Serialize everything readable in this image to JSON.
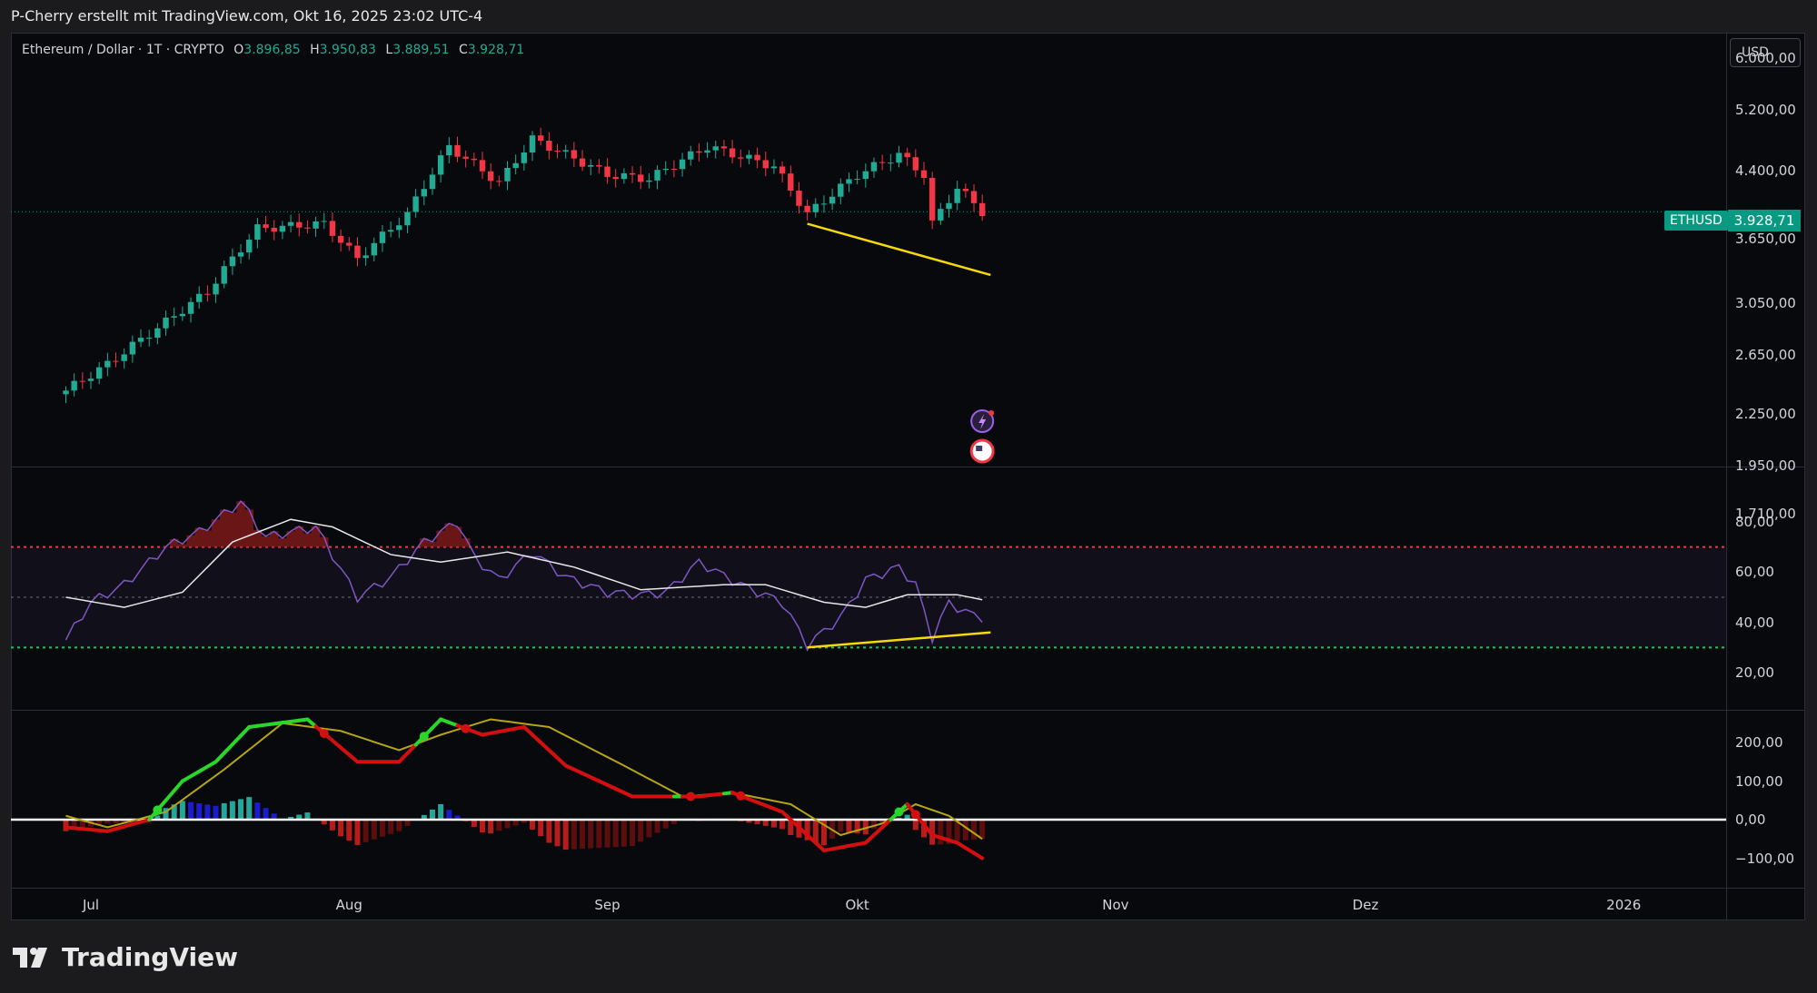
{
  "header": {
    "title": "P-Cherry erstellt mit TradingView.com, Okt 16, 2025 23:02 UTC-4"
  },
  "legend": {
    "symbol": "Ethereum / Dollar · 1T · CRYPTO",
    "open_key": "O",
    "open": "3.896,85",
    "high_key": "H",
    "high": "3.950,83",
    "low_key": "L",
    "low": "3.889,51",
    "close_key": "C",
    "close": "3.928,71"
  },
  "currency_button": "USD",
  "last_price": {
    "symbol": "ETHUSD",
    "price": "3.928,71"
  },
  "logo": "TradingView",
  "colors": {
    "up": "#22ab94",
    "down": "#f23645",
    "background": "#08090c",
    "trendline": "#f5d90a",
    "rsi_line": "#7e57c2"
  },
  "chart_data": [
    {
      "type": "candlestick",
      "title": "Ethereum / Dollar · 1T · CRYPTO",
      "y_scale": "log",
      "y_ticks": [
        "6.000,00",
        "5.200,00",
        "4.400,00",
        "3.650,00",
        "3.050,00",
        "2.650,00",
        "2.250,00",
        "1.950,00",
        "1.710,00"
      ],
      "y_tick_values": [
        6000,
        5200,
        4400,
        3650,
        3050,
        2650,
        2250,
        1950,
        1710
      ],
      "x_ticks": [
        "Jul",
        "Aug",
        "Sep",
        "Okt",
        "Nov",
        "Dez",
        "2026"
      ],
      "close_anchors": [
        {
          "date": "2025-06-28",
          "close": 2400
        },
        {
          "date": "2025-07-03",
          "close": 2580
        },
        {
          "date": "2025-07-10",
          "close": 2900
        },
        {
          "date": "2025-07-15",
          "close": 3150
        },
        {
          "date": "2025-07-21",
          "close": 3750
        },
        {
          "date": "2025-07-29",
          "close": 3800
        },
        {
          "date": "2025-08-02",
          "close": 3450
        },
        {
          "date": "2025-08-08",
          "close": 3900
        },
        {
          "date": "2025-08-13",
          "close": 4700
        },
        {
          "date": "2025-08-19",
          "close": 4250
        },
        {
          "date": "2025-08-23",
          "close": 4800
        },
        {
          "date": "2025-09-01",
          "close": 4350
        },
        {
          "date": "2025-09-06",
          "close": 4300
        },
        {
          "date": "2025-09-13",
          "close": 4700
        },
        {
          "date": "2025-09-21",
          "close": 4450
        },
        {
          "date": "2025-09-25",
          "close": 3900
        },
        {
          "date": "2025-10-01",
          "close": 4350
        },
        {
          "date": "2025-10-06",
          "close": 4600
        },
        {
          "date": "2025-10-09",
          "close": 4350
        },
        {
          "date": "2025-10-10",
          "close": 3800
        },
        {
          "date": "2025-10-13",
          "close": 4200
        },
        {
          "date": "2025-10-16",
          "close": 3928.71
        }
      ],
      "trendline": [
        {
          "date": "2025-09-25",
          "value": 3800
        },
        {
          "date": "2025-10-17",
          "value": 3300
        }
      ]
    },
    {
      "type": "line",
      "name": "RSI",
      "y_ticks": [
        "80,00",
        "60,00",
        "40,00",
        "20,00"
      ],
      "y_tick_values": [
        80,
        60,
        40,
        20
      ],
      "levels": [
        70,
        50,
        30
      ],
      "anchors": [
        {
          "date": "2025-06-28",
          "value": 33
        },
        {
          "date": "2025-07-01",
          "value": 48
        },
        {
          "date": "2025-07-05",
          "value": 55
        },
        {
          "date": "2025-07-10",
          "value": 70
        },
        {
          "date": "2025-07-14",
          "value": 76
        },
        {
          "date": "2025-07-19",
          "value": 88
        },
        {
          "date": "2025-07-22",
          "value": 74
        },
        {
          "date": "2025-07-28",
          "value": 78
        },
        {
          "date": "2025-08-02",
          "value": 50
        },
        {
          "date": "2025-08-06",
          "value": 58
        },
        {
          "date": "2025-08-10",
          "value": 72
        },
        {
          "date": "2025-08-14",
          "value": 80
        },
        {
          "date": "2025-08-16",
          "value": 66
        },
        {
          "date": "2025-08-19",
          "value": 57
        },
        {
          "date": "2025-08-23",
          "value": 68
        },
        {
          "date": "2025-08-27",
          "value": 58
        },
        {
          "date": "2025-09-01",
          "value": 52
        },
        {
          "date": "2025-09-05",
          "value": 51
        },
        {
          "date": "2025-09-08",
          "value": 52
        },
        {
          "date": "2025-09-12",
          "value": 64
        },
        {
          "date": "2025-09-17",
          "value": 55
        },
        {
          "date": "2025-09-22",
          "value": 48
        },
        {
          "date": "2025-09-25",
          "value": 31
        },
        {
          "date": "2025-09-29",
          "value": 42
        },
        {
          "date": "2025-10-02",
          "value": 57
        },
        {
          "date": "2025-10-06",
          "value": 62
        },
        {
          "date": "2025-10-08",
          "value": 55
        },
        {
          "date": "2025-10-10",
          "value": 34
        },
        {
          "date": "2025-10-12",
          "value": 48
        },
        {
          "date": "2025-10-14",
          "value": 44
        },
        {
          "date": "2025-10-16",
          "value": 42
        }
      ],
      "ma_anchors": [
        {
          "date": "2025-06-28",
          "value": 50
        },
        {
          "date": "2025-07-05",
          "value": 46
        },
        {
          "date": "2025-07-12",
          "value": 52
        },
        {
          "date": "2025-07-18",
          "value": 72
        },
        {
          "date": "2025-07-25",
          "value": 81
        },
        {
          "date": "2025-07-30",
          "value": 78
        },
        {
          "date": "2025-08-06",
          "value": 67
        },
        {
          "date": "2025-08-12",
          "value": 64
        },
        {
          "date": "2025-08-20",
          "value": 68
        },
        {
          "date": "2025-08-28",
          "value": 62
        },
        {
          "date": "2025-09-05",
          "value": 53
        },
        {
          "date": "2025-09-15",
          "value": 55
        },
        {
          "date": "2025-09-20",
          "value": 55
        },
        {
          "date": "2025-09-27",
          "value": 48
        },
        {
          "date": "2025-10-02",
          "value": 46
        },
        {
          "date": "2025-10-07",
          "value": 51
        },
        {
          "date": "2025-10-13",
          "value": 51
        },
        {
          "date": "2025-10-16",
          "value": 49
        }
      ],
      "trendline": [
        {
          "date": "2025-09-25",
          "value": 30
        },
        {
          "date": "2025-10-17",
          "value": 36
        }
      ]
    },
    {
      "type": "bar",
      "name": "MACD",
      "y_ticks": [
        "200,00",
        "100,00",
        "0,00",
        "−100,00"
      ],
      "y_tick_values": [
        200,
        100,
        0,
        -100
      ],
      "fast_anchors": [
        {
          "date": "2025-06-28",
          "value": -20
        },
        {
          "date": "2025-07-03",
          "value": -30
        },
        {
          "date": "2025-07-08",
          "value": 0
        },
        {
          "date": "2025-07-12",
          "value": 100
        },
        {
          "date": "2025-07-16",
          "value": 150
        },
        {
          "date": "2025-07-20",
          "value": 240
        },
        {
          "date": "2025-07-27",
          "value": 260
        },
        {
          "date": "2025-08-02",
          "value": 150
        },
        {
          "date": "2025-08-07",
          "value": 150
        },
        {
          "date": "2025-08-12",
          "value": 260
        },
        {
          "date": "2025-08-17",
          "value": 220
        },
        {
          "date": "2025-08-22",
          "value": 240
        },
        {
          "date": "2025-08-27",
          "value": 140
        },
        {
          "date": "2025-09-04",
          "value": 60
        },
        {
          "date": "2025-09-12",
          "value": 60
        },
        {
          "date": "2025-09-16",
          "value": 70
        },
        {
          "date": "2025-09-22",
          "value": 20
        },
        {
          "date": "2025-09-27",
          "value": -80
        },
        {
          "date": "2025-10-02",
          "value": -60
        },
        {
          "date": "2025-10-07",
          "value": 40
        },
        {
          "date": "2025-10-10",
          "value": -40
        },
        {
          "date": "2025-10-13",
          "value": -60
        },
        {
          "date": "2025-10-16",
          "value": -100
        }
      ],
      "signal_anchors": [
        {
          "date": "2025-06-28",
          "value": 10
        },
        {
          "date": "2025-07-03",
          "value": -20
        },
        {
          "date": "2025-07-10",
          "value": 20
        },
        {
          "date": "2025-07-17",
          "value": 130
        },
        {
          "date": "2025-07-24",
          "value": 250
        },
        {
          "date": "2025-07-31",
          "value": 230
        },
        {
          "date": "2025-08-07",
          "value": 180
        },
        {
          "date": "2025-08-12",
          "value": 220
        },
        {
          "date": "2025-08-18",
          "value": 260
        },
        {
          "date": "2025-08-25",
          "value": 240
        },
        {
          "date": "2025-09-03",
          "value": 140
        },
        {
          "date": "2025-09-10",
          "value": 60
        },
        {
          "date": "2025-09-16",
          "value": 70
        },
        {
          "date": "2025-09-23",
          "value": 40
        },
        {
          "date": "2025-09-29",
          "value": -40
        },
        {
          "date": "2025-10-04",
          "value": -10
        },
        {
          "date": "2025-10-08",
          "value": 40
        },
        {
          "date": "2025-10-12",
          "value": 10
        },
        {
          "date": "2025-10-16",
          "value": -50
        }
      ]
    }
  ]
}
